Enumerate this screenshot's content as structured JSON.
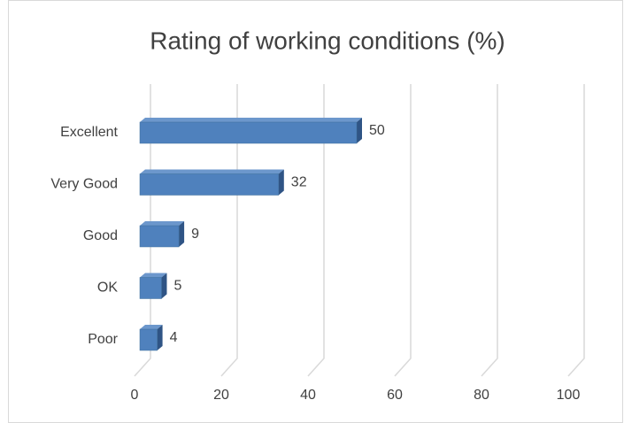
{
  "chart_data": {
    "type": "bar3d",
    "title": "Rating of working conditions (%)",
    "categories": [
      "Excellent",
      "Very Good",
      "Good",
      "OK",
      "Poor"
    ],
    "values": [
      50,
      32,
      9,
      5,
      4
    ],
    "color": "#4f81bd",
    "xlim": [
      0,
      100
    ],
    "xticks": [
      0,
      20,
      40,
      60,
      80,
      100
    ],
    "grid": true
  }
}
